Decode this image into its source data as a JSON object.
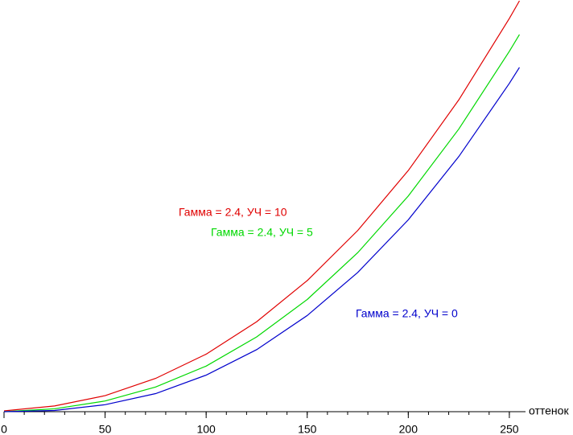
{
  "chart_data": {
    "type": "line",
    "x": [
      0,
      25,
      50,
      75,
      100,
      125,
      150,
      175,
      200,
      225,
      250,
      255
    ],
    "series": [
      {
        "name": "Гамма = 2.4, УЧ = 10",
        "color": "#e00000",
        "values": [
          0.002,
          0.014,
          0.039,
          0.081,
          0.14,
          0.219,
          0.319,
          0.441,
          0.587,
          0.759,
          0.957,
          1.0
        ]
      },
      {
        "name": "Гамма = 2.4, УЧ = 5",
        "color": "#00d800",
        "values": [
          0.0,
          0.007,
          0.026,
          0.06,
          0.111,
          0.182,
          0.273,
          0.387,
          0.525,
          0.688,
          0.877,
          0.918
        ]
      },
      {
        "name": "Гамма = 2.4, УЧ = 0",
        "color": "#0000cc",
        "values": [
          0.0,
          0.003,
          0.017,
          0.044,
          0.089,
          0.151,
          0.234,
          0.339,
          0.467,
          0.621,
          0.799,
          0.838
        ]
      }
    ],
    "xlabel": "оттенок",
    "xlim": [
      0,
      258
    ],
    "xticks": [
      0,
      50,
      100,
      150,
      200,
      250
    ],
    "xminorstep": 10,
    "ylim": [
      0,
      1
    ]
  }
}
